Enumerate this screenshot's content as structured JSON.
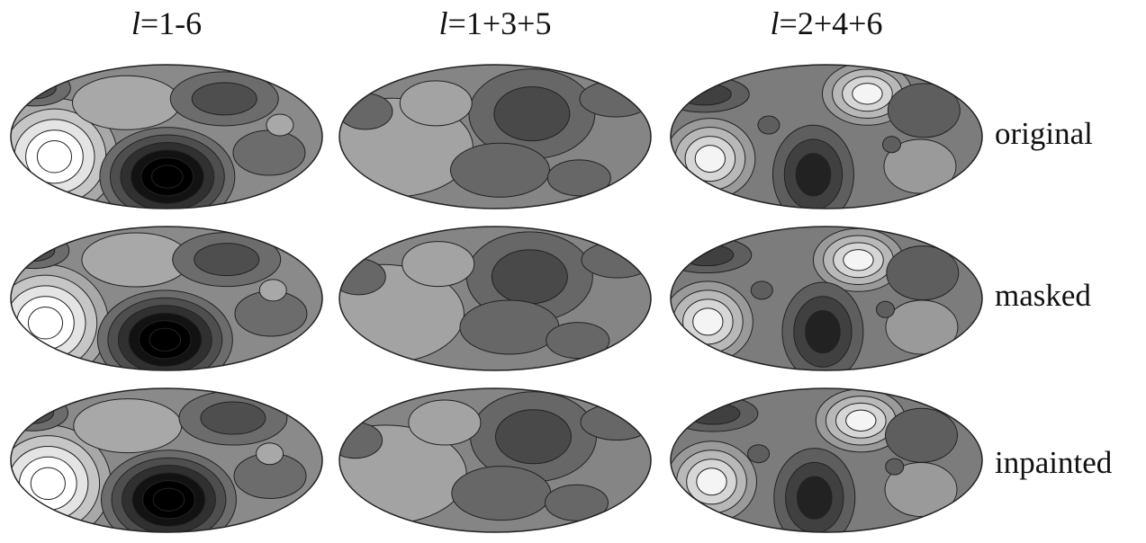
{
  "columns": [
    {
      "symbol": "l",
      "label": "=1-6"
    },
    {
      "symbol": "l",
      "label": "=1+3+5"
    },
    {
      "symbol": "l",
      "label": "=2+4+6"
    }
  ],
  "rows": [
    "original",
    "masked",
    "inpainted"
  ]
}
